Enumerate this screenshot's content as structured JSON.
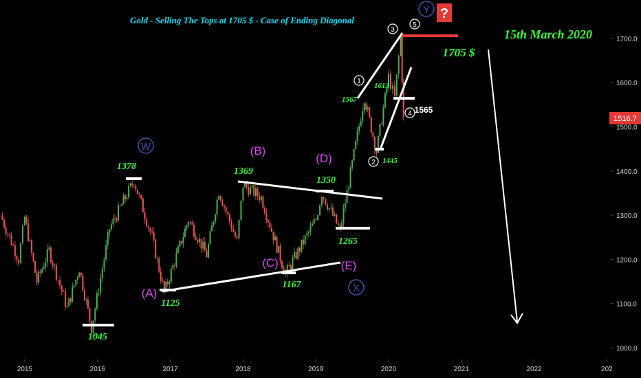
{
  "title": "Gold - Selling The Tops at 1705 $ - Case of Ending Diagonal",
  "date_note": "15th March 2020",
  "target_note": "1705 $",
  "current_price": "1516.7",
  "question_mark": "?",
  "colors": {
    "background": "#000000",
    "up": "#4caf50",
    "down": "#ef5350",
    "label_green": "#33ff33",
    "label_magenta": "#e040fb",
    "label_blue": "#3f51b5",
    "title_cyan": "#00e5ff",
    "price_badge": "#e53935",
    "target_line": "#e53935",
    "axis_text": "#cfcfcf",
    "white": "#ffffff"
  },
  "chart_data": {
    "type": "candlestick",
    "ylim": [
      980,
      1760
    ],
    "y_ticks": [
      "1000.0",
      "1100.0",
      "1200.0",
      "1300.0",
      "1400.0",
      "1500.0",
      "1600.0",
      "1700.0"
    ],
    "x_ticks": [
      "2015",
      "2016",
      "2017",
      "2018",
      "2019",
      "2020",
      "2021",
      "2022",
      "202"
    ],
    "series_path": [
      {
        "x": "2014-09",
        "y": 1300
      },
      {
        "x": "2014-12",
        "y": 1200
      },
      {
        "x": "2015-01",
        "y": 1295
      },
      {
        "x": "2015-03",
        "y": 1150
      },
      {
        "x": "2015-05",
        "y": 1220
      },
      {
        "x": "2015-08",
        "y": 1090
      },
      {
        "x": "2015-10",
        "y": 1180
      },
      {
        "x": "2015-12",
        "y": 1045
      },
      {
        "x": "2016-03",
        "y": 1270
      },
      {
        "x": "2016-07",
        "y": 1378
      },
      {
        "x": "2016-10",
        "y": 1250
      },
      {
        "x": "2016-12",
        "y": 1125
      },
      {
        "x": "2017-04",
        "y": 1290
      },
      {
        "x": "2017-07",
        "y": 1210
      },
      {
        "x": "2017-09",
        "y": 1355
      },
      {
        "x": "2017-12",
        "y": 1240
      },
      {
        "x": "2018-01",
        "y": 1369
      },
      {
        "x": "2018-04",
        "y": 1340
      },
      {
        "x": "2018-08",
        "y": 1167
      },
      {
        "x": "2019-01",
        "y": 1290
      },
      {
        "x": "2019-02",
        "y": 1350
      },
      {
        "x": "2019-05",
        "y": 1265
      },
      {
        "x": "2019-09",
        "y": 1567
      },
      {
        "x": "2019-11",
        "y": 1445
      },
      {
        "x": "2020-01",
        "y": 1613
      },
      {
        "x": "2020-02",
        "y": 1565
      },
      {
        "x": "2020-03",
        "y": 1705
      },
      {
        "x": "2020-03-15",
        "y": 1517
      }
    ],
    "price_labels": [
      {
        "text": "1045",
        "x": "2015-12",
        "y": 1045
      },
      {
        "text": "1378",
        "x": "2016-07",
        "y": 1378
      },
      {
        "text": "1125",
        "x": "2016-12",
        "y": 1125
      },
      {
        "text": "1369",
        "x": "2018-01",
        "y": 1369
      },
      {
        "text": "1167",
        "x": "2018-08",
        "y": 1167
      },
      {
        "text": "1350",
        "x": "2019-02",
        "y": 1350
      },
      {
        "text": "1265",
        "x": "2019-05",
        "y": 1265
      },
      {
        "text": "1567",
        "x": "2019-09",
        "y": 1567
      },
      {
        "text": "1445",
        "x": "2019-11",
        "y": 1445
      },
      {
        "text": "1613",
        "x": "2020-01",
        "y": 1613
      },
      {
        "text": "1565",
        "x": "2020-02",
        "y": 1565
      }
    ],
    "wave_labels_magenta": [
      "(A)",
      "(B)",
      "(C)",
      "(D)",
      "(E)"
    ],
    "wave_labels_blue": [
      "W",
      "X",
      "Y"
    ],
    "wave_labels_white": [
      "1",
      "2",
      "3",
      "4",
      "5"
    ]
  }
}
